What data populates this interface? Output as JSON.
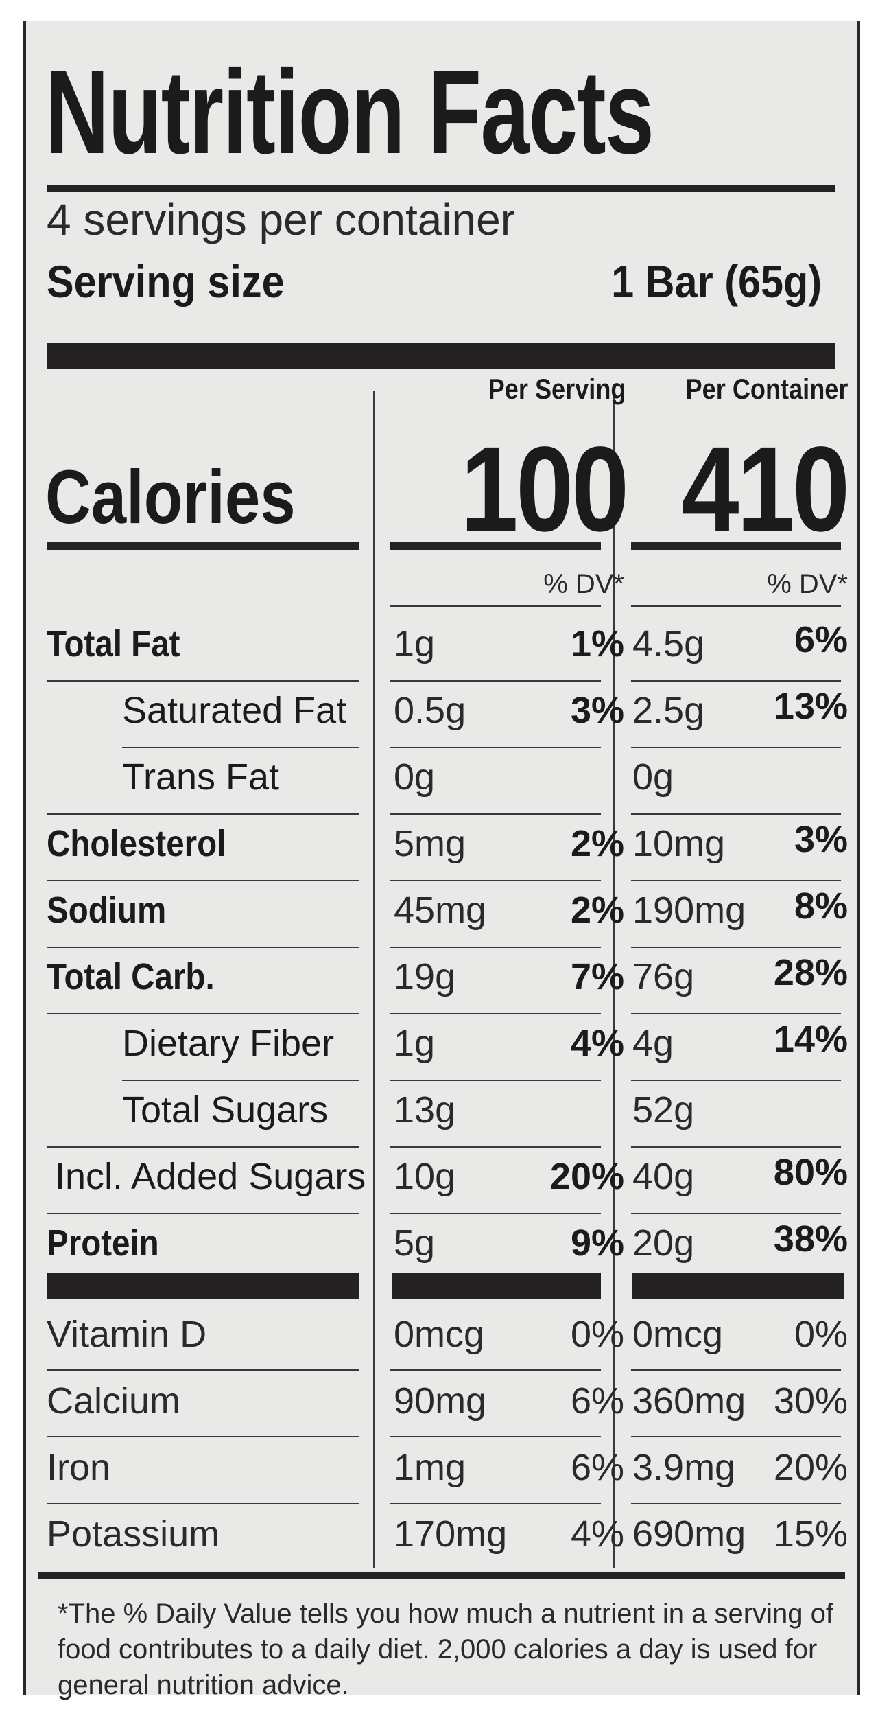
{
  "header": {
    "title": "Nutrition Facts",
    "servings_per_container": "4 servings per container",
    "serving_size_label": "Serving size",
    "serving_size_value": "1 Bar (65g)"
  },
  "columns": {
    "per_serving_label": "Per Serving",
    "per_container_label": "Per Container",
    "dv_label": "% DV*"
  },
  "calories": {
    "label": "Calories",
    "per_serving": "100",
    "per_container": "410"
  },
  "nutrients": [
    {
      "label": "Total Fat",
      "bold": true,
      "indent": false,
      "serving_amount": "1g",
      "serving_dv": "1%",
      "container_amount": "4.5g",
      "container_dv": "6%"
    },
    {
      "label": "Saturated Fat",
      "bold": false,
      "indent": true,
      "serving_amount": "0.5g",
      "serving_dv": "3%",
      "container_amount": "2.5g",
      "container_dv": "13%"
    },
    {
      "label": "Trans Fat",
      "bold": false,
      "indent": true,
      "serving_amount": "0g",
      "serving_dv": "",
      "container_amount": "0g",
      "container_dv": ""
    },
    {
      "label": "Cholesterol",
      "bold": true,
      "indent": false,
      "serving_amount": "5mg",
      "serving_dv": "2%",
      "container_amount": "10mg",
      "container_dv": "3%"
    },
    {
      "label": "Sodium",
      "bold": true,
      "indent": false,
      "serving_amount": "45mg",
      "serving_dv": "2%",
      "container_amount": "190mg",
      "container_dv": "8%"
    },
    {
      "label": "Total Carb.",
      "bold": true,
      "indent": false,
      "serving_amount": "19g",
      "serving_dv": "7%",
      "container_amount": "76g",
      "container_dv": "28%"
    },
    {
      "label": "Dietary Fiber",
      "bold": false,
      "indent": true,
      "serving_amount": "1g",
      "serving_dv": "4%",
      "container_amount": "4g",
      "container_dv": "14%"
    },
    {
      "label": "Total Sugars",
      "bold": false,
      "indent": true,
      "serving_amount": "13g",
      "serving_dv": "",
      "container_amount": "52g",
      "container_dv": ""
    },
    {
      "label": "Incl. Added Sugars",
      "bold": false,
      "indent": false,
      "serving_amount": "10g",
      "serving_dv": "20%",
      "container_amount": "40g",
      "container_dv": "80%"
    },
    {
      "label": "Protein",
      "bold": true,
      "indent": false,
      "serving_amount": "5g",
      "serving_dv": "9%",
      "container_amount": "20g",
      "container_dv": "38%"
    }
  ],
  "vitamins": [
    {
      "label": "Vitamin D",
      "serving_amount": "0mcg",
      "serving_dv": "0%",
      "container_amount": "0mcg",
      "container_dv": "0%"
    },
    {
      "label": "Calcium",
      "serving_amount": "90mg",
      "serving_dv": "6%",
      "container_amount": "360mg",
      "container_dv": "30%"
    },
    {
      "label": "Iron",
      "serving_amount": "1mg",
      "serving_dv": "6%",
      "container_amount": "3.9mg",
      "container_dv": "20%"
    },
    {
      "label": "Potassium",
      "serving_amount": "170mg",
      "serving_dv": "4%",
      "container_amount": "690mg",
      "container_dv": "15%"
    }
  ],
  "footnote": "*The % Daily Value tells you how much a nutrient in a serving of food contributes to a daily diet. 2,000 calories a day is used for general nutrition advice."
}
